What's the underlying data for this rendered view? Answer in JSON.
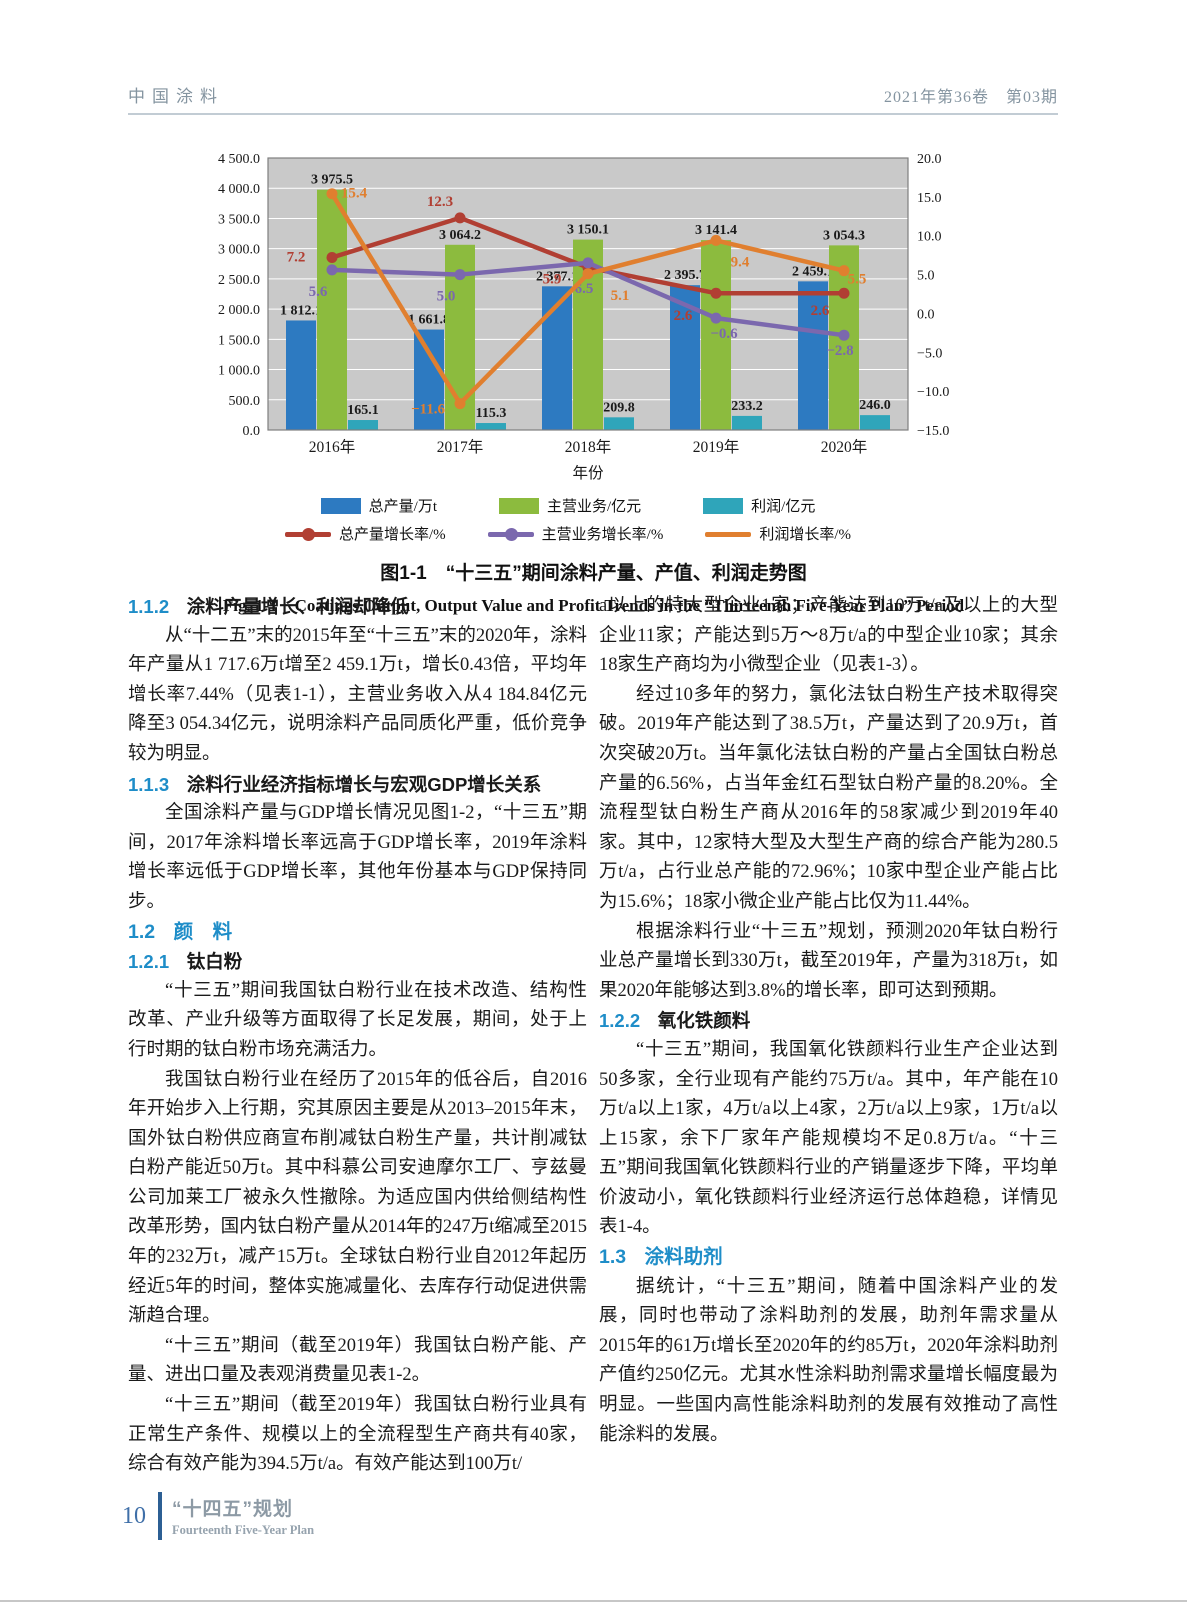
{
  "header": {
    "journal": "中国涂料",
    "issue": "2021年第36卷　第03期"
  },
  "figure": {
    "caption_cn": "图1-1　“十三五”期间涂料产量、产值、利润走势图",
    "caption_en": "Fig. 1-1　Coatings Output, Output Value and Profit Trends in the “Thirteenth Five-Year Plan” Period"
  },
  "chart_data": {
    "type": "bar+line",
    "categories": [
      "2016年",
      "2017年",
      "2018年",
      "2019年",
      "2020年"
    ],
    "xlabel": "年份",
    "plot_bg": "#c9c9c9",
    "grid_color": "#ffffff",
    "border_color": "#7f7f7f",
    "left_axis": {
      "labels": [
        "4 500.0",
        "4 000.0",
        "3 500.0",
        "3 000.0",
        "2 500.0",
        "2 000.0",
        "1 500.0",
        "1 000.0",
        "500.0",
        "0.0"
      ],
      "values": [
        4500,
        4000,
        3500,
        3000,
        2500,
        2000,
        1500,
        1000,
        500,
        0
      ],
      "min": 0,
      "max": 4500
    },
    "right_axis": {
      "labels": [
        "20.0",
        "15.0",
        "10.0",
        "5.0",
        "0.0",
        "−5.0",
        "−10.0",
        "−15.0"
      ],
      "values": [
        20,
        15,
        10,
        5,
        0,
        -5,
        -10,
        -15
      ],
      "min": -15,
      "max": 20
    },
    "bar_series": [
      {
        "name": "总产量/万t",
        "color": "#2d7ac1",
        "values": [
          1812.1,
          1661.8,
          2377.1,
          2395.7,
          2459.1
        ],
        "labels": [
          "1 812.1",
          "1 661.8",
          "2 377.1",
          "2 395.7",
          "2 459.1"
        ]
      },
      {
        "name": "主营业务/亿元",
        "color": "#8cbb3e",
        "values": [
          3975.5,
          3064.2,
          3150.1,
          3141.4,
          3054.3
        ],
        "labels": [
          "3 975.5",
          "3 064.2",
          "3 150.1",
          "3 141.4",
          "3 054.3"
        ]
      },
      {
        "name": "利润/亿元",
        "color": "#2fa5ba",
        "values": [
          165.1,
          115.3,
          209.8,
          233.2,
          246.0
        ],
        "labels": [
          "165.1",
          "115.3",
          "209.8",
          "233.2",
          "246.0"
        ]
      }
    ],
    "line_series": [
      {
        "name": "总产量增长率/%",
        "color": "#b13f33",
        "dot": true,
        "values": [
          7.2,
          12.3,
          5.9,
          2.6,
          2.6
        ],
        "labels": [
          "7.2",
          "12.3",
          "5.9",
          "2.6",
          "2.6"
        ],
        "label_dx": [
          -36,
          -20,
          -36,
          -33,
          -24
        ],
        "label_dy": [
          4,
          -12,
          16,
          27,
          22
        ]
      },
      {
        "name": "主营业务增长率/%",
        "color": "#7b68ae",
        "dot": true,
        "values": [
          5.6,
          5.0,
          6.5,
          -0.6,
          -2.8
        ],
        "labels": [
          "5.6",
          "5.0",
          "6.5",
          "−0.6",
          "−2.8"
        ],
        "label_dx": [
          -14,
          -14,
          -4,
          8,
          -4
        ],
        "label_dy": [
          26,
          26,
          30,
          20,
          20
        ]
      },
      {
        "name": "利润增长率/%",
        "color": "#e07f2f",
        "dot": true,
        "legend_dot": false,
        "values": [
          15.4,
          -11.6,
          5.1,
          9.4,
          5.5
        ],
        "labels": [
          "15.4",
          "−11.6",
          "5.1",
          "9.4",
          "5.5"
        ],
        "label_dx": [
          22,
          -32,
          32,
          24,
          13
        ],
        "label_dy": [
          4,
          10,
          26,
          26,
          13
        ]
      }
    ]
  },
  "columns": {
    "left": [
      {
        "type": "h3",
        "num": "1.1.2",
        "text": "涂料产量增长、利润却降低"
      },
      {
        "type": "p",
        "text": "从“十二五”末的2015年至“十三五”末的2020年，涂料年产量从1 717.6万t增至2 459.1万t，增长0.43倍，平均年增长率7.44%（见表1-1），主营业务收入从4 184.84亿元降至3 054.34亿元，说明涂料产品同质化严重，低价竞争较为明显。"
      },
      {
        "type": "h3",
        "num": "1.1.3",
        "text": "涂料行业经济指标增长与宏观GDP增长关系"
      },
      {
        "type": "p",
        "text": "全国涂料产量与GDP增长情况见图1-2，“十三五”期间，2017年涂料增长率远高于GDP增长率，2019年涂料增长率远低于GDP增长率，其他年份基本与GDP保持同步。"
      },
      {
        "type": "h2",
        "num": "1.2",
        "text": "颜　料"
      },
      {
        "type": "h3",
        "num": "1.2.1",
        "text": "钛白粉"
      },
      {
        "type": "p",
        "text": "“十三五”期间我国钛白粉行业在技术改造、结构性改革、产业升级等方面取得了长足发展，期间，处于上行时期的钛白粉市场充满活力。"
      },
      {
        "type": "p",
        "text": "我国钛白粉行业在经历了2015年的低谷后，自2016年开始步入上行期，究其原因主要是从2013–2015年末，国外钛白粉供应商宣布削减钛白粉生产量，共计削减钛白粉产能近50万t。其中科慕公司安迪摩尔工厂、亨兹曼公司加莱工厂被永久性撤除。为适应国内供给侧结构性改革形势，国内钛白粉产量从2014年的247万t缩减至2015年的232万t，减产15万t。全球钛白粉行业自2012年起历经近5年的时间，整体实施减量化、去库存行动促进供需渐趋合理。"
      },
      {
        "type": "p",
        "text": "“十三五”期间（截至2019年）我国钛白粉产能、产量、进出口量及表观消费量见表1-2。"
      },
      {
        "type": "p",
        "text": "“十三五”期间（截至2019年）我国钛白粉行业具有正常生产条件、规模以上的全流程型生产商共有40家，综合有效产能为394.5万t/a。有效产能达到100万t/"
      }
    ],
    "right": [
      {
        "type": "p",
        "indent": false,
        "text": "a以上的特大型企业1家；产能达到10万t/a及以上的大型企业11家；产能达到5万～8万t/a的中型企业10家；其余18家生产商均为小微型企业（见表1-3）。"
      },
      {
        "type": "p",
        "text": "经过10多年的努力，氯化法钛白粉生产技术取得突破。2019年产能达到了38.5万t，产量达到了20.9万t，首次突破20万t。当年氯化法钛白粉的产量占全国钛白粉总产量的6.56%，占当年金红石型钛白粉产量的8.20%。全流程型钛白粉生产商从2016年的58家减少到2019年40家。其中，12家特大型及大型生产商的综合产能为280.5万t/a，占行业总产能的72.96%；10家中型企业产能占比为15.6%；18家小微企业产能占比仅为11.44%。"
      },
      {
        "type": "p",
        "text": "根据涂料行业“十三五”规划，预测2020年钛白粉行业总产量增长到330万t，截至2019年，产量为318万t，如果2020年能够达到3.8%的增长率，即可达到预期。"
      },
      {
        "type": "h3",
        "num": "1.2.2",
        "text": "氧化铁颜料"
      },
      {
        "type": "p",
        "text": "“十三五”期间，我国氧化铁颜料行业生产企业达到50多家，全行业现有产能约75万t/a。其中，年产能在10万t/a以上1家，4万t/a以上4家，2万t/a以上9家，1万t/a以上15家，余下厂家年产能规模均不足0.8万t/a。“十三五”期间我国氧化铁颜料行业的产销量逐步下降，平均单价波动小，氧化铁颜料行业经济运行总体趋稳，详情见表1-4。"
      },
      {
        "type": "h2",
        "num": "1.3",
        "text": "涂料助剂"
      },
      {
        "type": "p",
        "text": "据统计，“十三五”期间，随着中国涂料产业的发展，同时也带动了涂料助剂的发展，助剂年需求量从2015年的61万t增长至2020年的约85万t，2020年涂料助剂产值约250亿元。尤其水性涂料助剂需求量增长幅度最为明显。一些国内高性能涂料助剂的发展有效推动了高性能涂料的发展。"
      }
    ]
  },
  "footer": {
    "page_number": "10",
    "plan_cn": "“十四五”规划",
    "plan_en": "Fourteenth Five-Year Plan"
  }
}
